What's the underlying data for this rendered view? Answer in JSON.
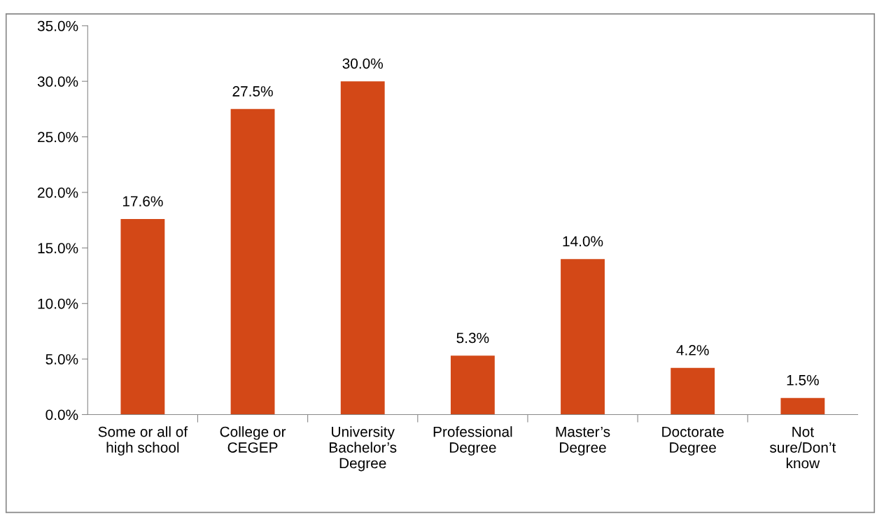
{
  "chart_data": {
    "type": "bar",
    "categories": [
      "Some or all of\nhigh school",
      "College or\nCEGEP",
      "University\nBachelor’s\nDegree",
      "Professional\nDegree",
      "Master’s\nDegree",
      "Doctorate\nDegree",
      "Not\nsure/Don’t\nknow"
    ],
    "values": [
      17.6,
      27.5,
      30.0,
      5.3,
      14.0,
      4.2,
      1.5
    ],
    "value_labels": [
      "17.6%",
      "27.5%",
      "30.0%",
      "5.3%",
      "14.0%",
      "4.2%",
      "1.5%"
    ],
    "color": "#d34817",
    "ylim": [
      0,
      35
    ],
    "yticks": [
      {
        "value": 0,
        "label": "0.0%"
      },
      {
        "value": 5,
        "label": "5.0%"
      },
      {
        "value": 10,
        "label": "10.0%"
      },
      {
        "value": 15,
        "label": "15.0%"
      },
      {
        "value": 20,
        "label": "20.0%"
      },
      {
        "value": 25,
        "label": "25.0%"
      },
      {
        "value": 30,
        "label": "30.0%"
      },
      {
        "value": 35,
        "label": "35.0%"
      }
    ],
    "grid": false,
    "legend": false
  }
}
